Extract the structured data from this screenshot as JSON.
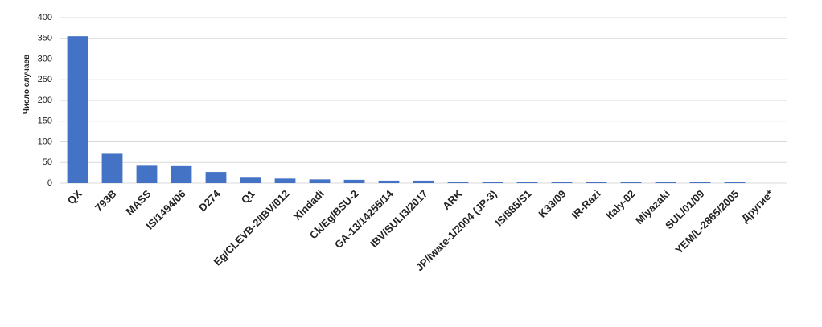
{
  "chart_data": {
    "type": "bar",
    "y_label": "Число случаев",
    "categories": [
      "QX",
      "793B",
      "MASS",
      "IS/1494/06",
      "D274",
      "Q1",
      "Eg/CLEVB-2/IBV/012",
      "Xindadi",
      "Ck/Eg/BSU-2",
      "GA-13/14255/14",
      "IBV/SULI3/2017",
      "ARK",
      "JP/Iwate-1/2004 (JP-3)",
      "IS/885/S1",
      "K33/09",
      "IR-Razi",
      "Italy-02",
      "Miyazaki",
      "SUL/01/09",
      "YEM/L-2865/2005",
      "Другие*"
    ],
    "values": [
      355,
      71,
      44,
      43,
      27,
      15,
      11,
      9,
      8,
      6,
      6,
      3,
      3,
      2,
      2,
      2,
      2,
      2,
      2,
      2,
      0
    ],
    "color": "#4472c4",
    "ylim": [
      0,
      400
    ],
    "yticks": [
      0,
      50,
      100,
      150,
      200,
      250,
      300,
      350,
      400
    ],
    "grid": true
  }
}
